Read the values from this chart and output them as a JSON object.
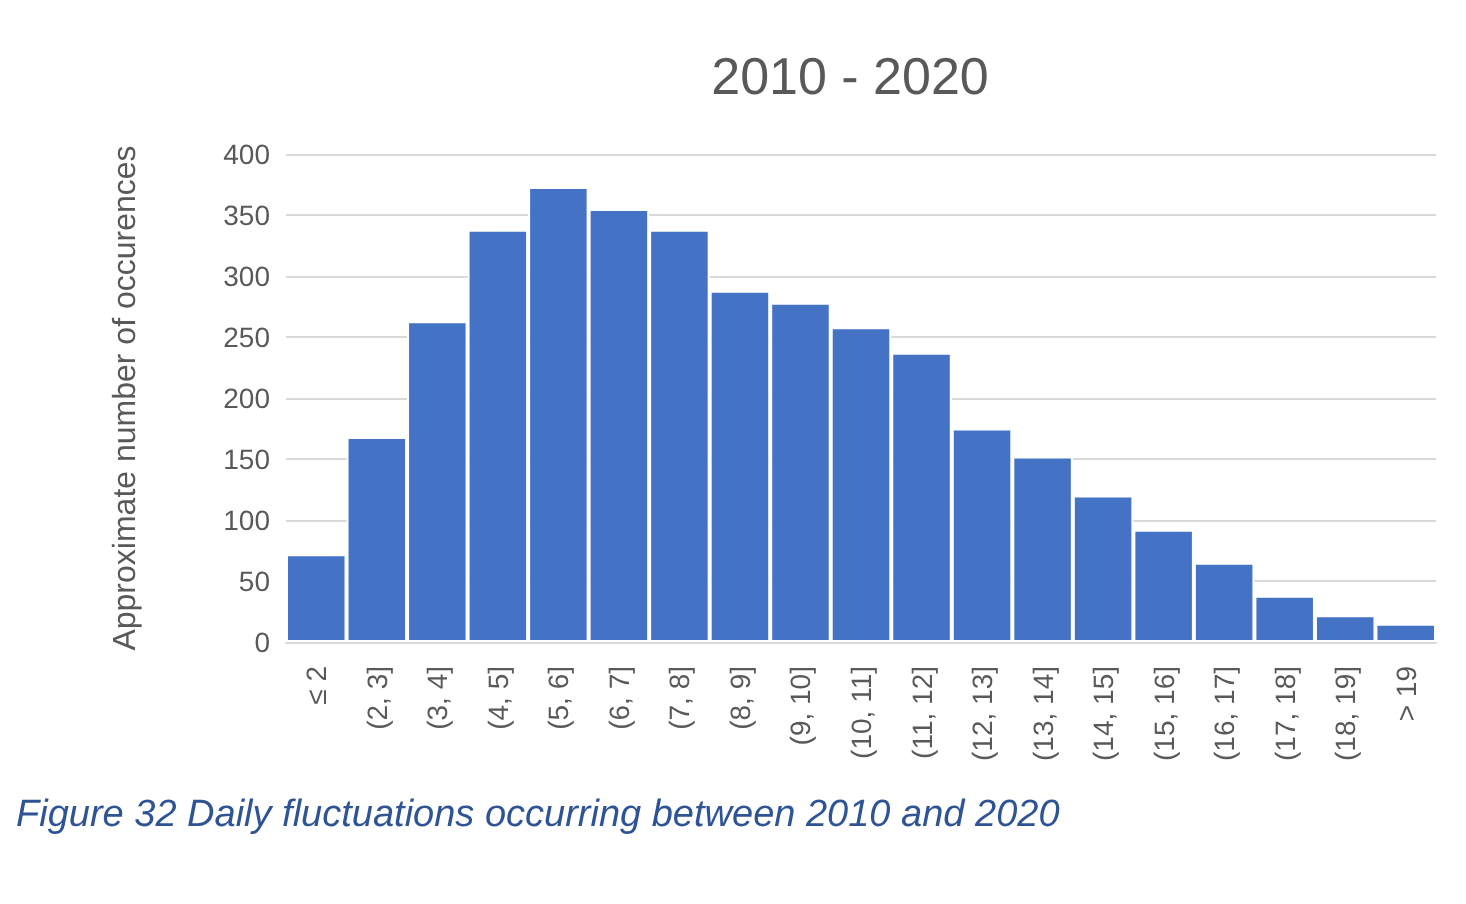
{
  "chart_data": {
    "type": "bar",
    "title": "2010 - 2020",
    "ylabel": "Approximate number of occurences",
    "categories": [
      "≤ 2",
      "(2, 3]",
      "(3, 4]",
      "(4, 5]",
      "(5, 6]",
      "(6, 7]",
      "(7, 8]",
      "(8, 9]",
      "(9, 10]",
      "(10, 11]",
      "(11, 12]",
      "(12, 13]",
      "(13, 14]",
      "(14, 15]",
      "(15, 16]",
      "(16, 17]",
      "(17, 18]",
      "(18, 19]",
      "> 19"
    ],
    "values": [
      72,
      168,
      263,
      338,
      373,
      355,
      338,
      288,
      278,
      258,
      237,
      175,
      152,
      120,
      92,
      65,
      38,
      22,
      15
    ],
    "color": "#4472c4",
    "ylim": [
      0,
      400
    ],
    "yticks": [
      0,
      50,
      100,
      150,
      200,
      250,
      300,
      350,
      400
    ],
    "grid": "y",
    "annotations": [
      "Figure 32 Daily fluctuations occurring between 2010 and 2020"
    ]
  }
}
